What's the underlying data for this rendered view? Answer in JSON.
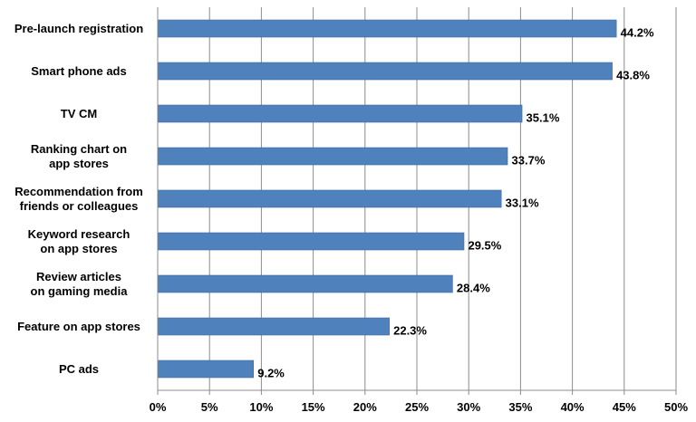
{
  "chart_data": {
    "type": "bar",
    "orientation": "horizontal",
    "categories": [
      [
        "Pre-launch registration"
      ],
      [
        "Smart phone ads"
      ],
      [
        "TV CM"
      ],
      [
        "Ranking chart on",
        "app stores"
      ],
      [
        "Recommendation from",
        "friends or colleagues"
      ],
      [
        "Keyword research",
        "on app stores"
      ],
      [
        "Review articles",
        "on gaming media"
      ],
      [
        "Feature on app stores"
      ],
      [
        "PC ads"
      ]
    ],
    "values": [
      44.2,
      43.8,
      35.1,
      33.7,
      33.1,
      29.5,
      28.4,
      22.3,
      9.2
    ],
    "data_labels": [
      "44.2%",
      "43.8%",
      "35.1%",
      "33.7%",
      "33.1%",
      "29.5%",
      "28.4%",
      "22.3%",
      "9.2%"
    ],
    "x_ticks": [
      0,
      5,
      10,
      15,
      20,
      25,
      30,
      35,
      40,
      45,
      50
    ],
    "x_tick_labels": [
      "0%",
      "5%",
      "10%",
      "15%",
      "20%",
      "25%",
      "30%",
      "35%",
      "40%",
      "45%",
      "50%"
    ],
    "xlim": [
      0,
      50
    ],
    "title": "",
    "xlabel": "",
    "ylabel": "",
    "grid": "vertical",
    "legend": "none",
    "colors": {
      "bar": "#4f81bd",
      "bar_edge": "#3b6aa0",
      "grid": "#8c8c8c",
      "axis": "#8c8c8c"
    }
  }
}
